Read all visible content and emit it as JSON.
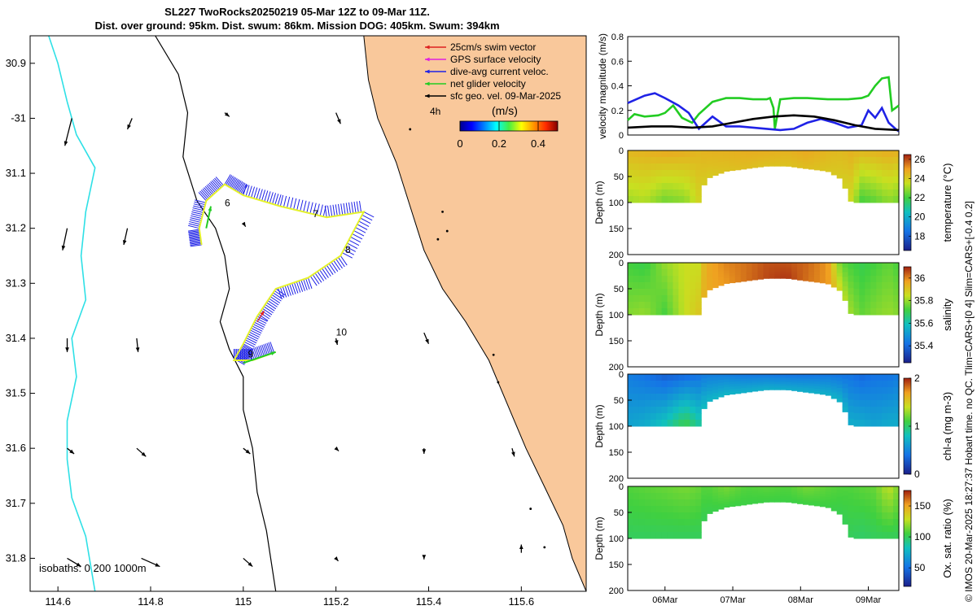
{
  "title_line1": "SL227 TwoRocks20250219 05-Mar 12Z to 09-Mar 11Z.",
  "title_line2": "Dist. over ground: 95km. Dist. swum: 86km. Mission DOG: 405km. Swum: 394km",
  "credit": "© IMOS 20-Mar-2025 18:27:37 Hobart time. no QC. Tlim=CARS+[0 4] Slim=CARS+[-0.4 0.2]",
  "colors": {
    "land": "#f9c89b",
    "coast_isobath": "#000000",
    "deep_isobath": "#2ee0e6",
    "track": "#e5f22a",
    "dive_avg": "#1f22e6",
    "net": "#22cc22",
    "swim": "#dd2020",
    "gps": "#e020e0",
    "geo": "#000000"
  },
  "chart_data": [
    {
      "type": "map",
      "name": "glider track map",
      "x_range": [
        114.54,
        115.74
      ],
      "y_range": [
        -31.86,
        -30.85
      ],
      "xticks": [
        114.6,
        114.8,
        115,
        115.2,
        115.4,
        115.6
      ],
      "xtick_labels": [
        "114.6",
        "114.8",
        "115",
        "115.2",
        "115.4",
        "115.6"
      ],
      "yticks": [
        -30.9,
        -31.0,
        -31.1,
        -31.2,
        -31.3,
        -31.4,
        -31.5,
        -31.6,
        -31.7,
        -31.8
      ],
      "ytick_labels": [
        "30.9",
        "-31",
        "31.1",
        "31.2",
        "31.3",
        "31.4",
        "31.5",
        "31.6",
        "31.7",
        "31.8"
      ],
      "legend": [
        {
          "label": "25cm/s swim vector",
          "color": "#dd2020"
        },
        {
          "label": "GPS surface velocity",
          "color": "#e020e0"
        },
        {
          "label": "dive-avg current veloc.",
          "color": "#1f22e6"
        },
        {
          "label": "net glider velocity",
          "color": "#22cc22"
        },
        {
          "label": "sfc geo. vel. 09-Mar-2025",
          "color": "#000000"
        }
      ],
      "scale_label": "4h",
      "colorbar": {
        "label": "(m/s)",
        "ticks": [
          "0",
          "0.2",
          "0.4"
        ],
        "range": [
          0,
          0.5
        ]
      },
      "isobath_label": "isobaths: 0   200  1000m",
      "day_labels": [
        {
          "text": "6",
          "lon": 114.96,
          "lat": -31.16
        },
        {
          "text": "7",
          "lon": 115.15,
          "lat": -31.18
        },
        {
          "text": "8",
          "lon": 115.22,
          "lat": -31.245
        },
        {
          "text": "9",
          "lon": 115.01,
          "lat": -31.435
        },
        {
          "text": "10",
          "lon": 115.2,
          "lat": -31.395
        }
      ],
      "track": [
        [
          114.91,
          -31.23
        ],
        [
          114.905,
          -31.2
        ],
        [
          114.92,
          -31.15
        ],
        [
          114.96,
          -31.12
        ],
        [
          115.0,
          -31.14
        ],
        [
          115.08,
          -31.16
        ],
        [
          115.18,
          -31.18
        ],
        [
          115.26,
          -31.17
        ],
        [
          115.21,
          -31.25
        ],
        [
          115.14,
          -31.29
        ],
        [
          115.07,
          -31.31
        ],
        [
          115.03,
          -31.36
        ],
        [
          115.0,
          -31.41
        ],
        [
          114.98,
          -31.44
        ],
        [
          115.02,
          -31.44
        ],
        [
          115.07,
          -31.425
        ]
      ],
      "coastline": [
        [
          115.26,
          -30.85
        ],
        [
          115.27,
          -30.93
        ],
        [
          115.29,
          -31.0
        ],
        [
          115.33,
          -31.08
        ],
        [
          115.36,
          -31.16
        ],
        [
          115.39,
          -31.24
        ],
        [
          115.43,
          -31.31
        ],
        [
          115.48,
          -31.37
        ],
        [
          115.53,
          -31.44
        ],
        [
          115.57,
          -31.52
        ],
        [
          115.61,
          -31.6
        ],
        [
          115.65,
          -31.67
        ],
        [
          115.69,
          -31.74
        ],
        [
          115.71,
          -31.8
        ],
        [
          115.74,
          -31.86
        ]
      ],
      "isobath_shelf": [
        [
          114.81,
          -30.85
        ],
        [
          114.86,
          -30.92
        ],
        [
          114.88,
          -30.99
        ],
        [
          114.87,
          -31.07
        ],
        [
          114.9,
          -31.15
        ],
        [
          114.94,
          -31.2
        ],
        [
          114.96,
          -31.25
        ],
        [
          114.97,
          -31.31
        ],
        [
          114.95,
          -31.37
        ],
        [
          114.97,
          -31.42
        ],
        [
          115.0,
          -31.47
        ],
        [
          115.0,
          -31.53
        ],
        [
          115.02,
          -31.6
        ],
        [
          115.03,
          -31.68
        ],
        [
          115.05,
          -31.75
        ],
        [
          115.07,
          -31.86
        ]
      ],
      "isobath_deep": [
        [
          114.58,
          -30.85
        ],
        [
          114.6,
          -30.9
        ],
        [
          114.62,
          -30.97
        ],
        [
          114.64,
          -31.03
        ],
        [
          114.68,
          -31.09
        ],
        [
          114.66,
          -31.17
        ],
        [
          114.65,
          -31.25
        ],
        [
          114.66,
          -31.33
        ],
        [
          114.63,
          -31.4
        ],
        [
          114.64,
          -31.47
        ],
        [
          114.62,
          -31.55
        ],
        [
          114.62,
          -31.62
        ],
        [
          114.63,
          -31.69
        ],
        [
          114.66,
          -31.76
        ],
        [
          114.68,
          -31.86
        ]
      ],
      "geo_vectors": [
        [
          114.63,
          -31.0,
          -0.015,
          -0.05
        ],
        [
          114.76,
          -31.0,
          -0.01,
          -0.02
        ],
        [
          114.96,
          -30.99,
          0.01,
          -0.007
        ],
        [
          115.2,
          -30.99,
          0.01,
          -0.02
        ],
        [
          114.62,
          -31.2,
          -0.01,
          -0.04
        ],
        [
          114.75,
          -31.2,
          -0.008,
          -0.03
        ],
        [
          115.0,
          -31.19,
          0.005,
          -0.007
        ],
        [
          114.62,
          -31.4,
          0.0,
          -0.025
        ],
        [
          114.77,
          -31.4,
          0.003,
          -0.025
        ],
        [
          115.2,
          -31.4,
          0.003,
          -0.012
        ],
        [
          115.39,
          -31.39,
          0.01,
          -0.02
        ],
        [
          114.62,
          -31.6,
          0.015,
          -0.01
        ],
        [
          114.77,
          -31.6,
          0.02,
          -0.015
        ],
        [
          115.0,
          -31.6,
          0.015,
          -0.01
        ],
        [
          115.2,
          -31.6,
          0.006,
          -0.005
        ],
        [
          115.39,
          -31.6,
          0.0,
          -0.01
        ],
        [
          115.58,
          -31.6,
          0.005,
          -0.015
        ],
        [
          114.62,
          -31.8,
          0.03,
          -0.015
        ],
        [
          114.78,
          -31.8,
          0.04,
          -0.015
        ],
        [
          115.0,
          -31.8,
          0.02,
          -0.015
        ],
        [
          115.2,
          -31.8,
          0.005,
          -0.005
        ],
        [
          115.39,
          -31.8,
          0.0,
          -0.002
        ],
        [
          115.6,
          -31.79,
          0.0,
          0.015
        ]
      ]
    },
    {
      "type": "line",
      "name": "velocity magnitude",
      "ylabel": "velocity magnitude (m/s)",
      "ylim": [
        0,
        0.8
      ],
      "yticks": [
        "0",
        "0.2",
        "0.4",
        "0.6",
        "0.8"
      ],
      "xlim": [
        5.45,
        9.45
      ],
      "series": [
        {
          "name": "net glider velocity",
          "color": "#22cc22",
          "x": [
            5.45,
            5.55,
            5.7,
            5.9,
            6.0,
            6.12,
            6.25,
            6.4,
            6.5,
            6.7,
            6.9,
            7.1,
            7.3,
            7.5,
            7.55,
            7.6,
            7.62,
            7.7,
            7.9,
            8.1,
            8.4,
            8.7,
            8.9,
            9.0,
            9.1,
            9.2,
            9.3,
            9.35,
            9.45
          ],
          "y": [
            0.12,
            0.17,
            0.15,
            0.16,
            0.18,
            0.24,
            0.14,
            0.1,
            0.17,
            0.27,
            0.3,
            0.3,
            0.29,
            0.29,
            0.3,
            0.22,
            0.05,
            0.29,
            0.3,
            0.3,
            0.29,
            0.29,
            0.3,
            0.32,
            0.4,
            0.46,
            0.47,
            0.2,
            0.24
          ]
        },
        {
          "name": "dive-avg current",
          "color": "#1f22e6",
          "x": [
            5.45,
            5.7,
            5.85,
            6.0,
            6.2,
            6.35,
            6.5,
            6.7,
            6.9,
            7.1,
            7.3,
            7.5,
            7.7,
            7.9,
            8.1,
            8.3,
            8.5,
            8.7,
            8.9,
            9.0,
            9.1,
            9.2,
            9.3,
            9.4,
            9.45
          ],
          "y": [
            0.26,
            0.32,
            0.34,
            0.3,
            0.24,
            0.18,
            0.05,
            0.15,
            0.07,
            0.07,
            0.06,
            0.05,
            0.04,
            0.05,
            0.1,
            0.13,
            0.1,
            0.06,
            0.08,
            0.2,
            0.14,
            0.22,
            0.1,
            0.05,
            0.03
          ]
        },
        {
          "name": "sfc geo. vel.",
          "color": "#000000",
          "x": [
            5.45,
            5.8,
            6.1,
            6.4,
            6.7,
            7.0,
            7.3,
            7.6,
            7.9,
            8.2,
            8.5,
            8.8,
            9.1,
            9.45
          ],
          "y": [
            0.06,
            0.07,
            0.07,
            0.06,
            0.07,
            0.1,
            0.13,
            0.15,
            0.16,
            0.15,
            0.12,
            0.08,
            0.05,
            0.04
          ]
        }
      ]
    },
    {
      "type": "heatmap",
      "name": "temperature section",
      "ylabel": "Depth (m)",
      "clabel": "temperature (°C)",
      "ylim": [
        0,
        200
      ],
      "yticks": [
        "0",
        "50",
        "100",
        "150",
        "200"
      ],
      "crange": [
        16.5,
        26.5
      ],
      "cticks": [
        "18",
        "20",
        "22",
        "24",
        "26"
      ],
      "x": [
        5.45,
        5.7,
        6.0,
        6.3,
        6.5,
        6.6,
        6.9,
        7.2,
        7.5,
        7.8,
        8.1,
        8.4,
        8.6,
        8.75,
        8.9,
        9.1,
        9.3,
        9.45
      ],
      "max_depth": [
        100,
        100,
        100,
        100,
        100,
        55,
        40,
        35,
        30,
        30,
        35,
        40,
        55,
        100,
        100,
        100,
        100,
        100
      ],
      "surface": [
        24.5,
        24.6,
        24.8,
        24.7,
        24.5,
        24.6,
        24.6,
        24.7,
        24.7,
        24.6,
        24.8,
        24.5,
        24.4,
        24.6,
        24.5,
        24.6,
        24.7,
        24.6
      ],
      "deep": [
        23.0,
        23.2,
        22.5,
        22.8,
        23.8,
        24.0,
        24.2,
        24.3,
        24.2,
        24.2,
        24.3,
        24.1,
        24.0,
        23.6,
        22.0,
        22.3,
        22.8,
        22.5
      ],
      "xtick_labels": []
    },
    {
      "type": "heatmap",
      "name": "salinity section",
      "ylabel": "Depth (m)",
      "clabel": "salinity",
      "ylim": [
        0,
        200
      ],
      "yticks": [
        "0",
        "50",
        "100",
        "150",
        "200"
      ],
      "crange": [
        35.25,
        36.1
      ],
      "cticks": [
        "35.4",
        "35.6",
        "35.8",
        "36"
      ],
      "x": [
        5.45,
        5.7,
        6.0,
        6.3,
        6.5,
        6.6,
        6.9,
        7.2,
        7.5,
        7.8,
        8.1,
        8.4,
        8.6,
        8.75,
        8.9,
        9.1,
        9.3,
        9.45
      ],
      "max_depth": [
        100,
        100,
        100,
        100,
        100,
        55,
        40,
        35,
        30,
        30,
        35,
        40,
        55,
        100,
        100,
        100,
        100,
        100
      ],
      "surface": [
        35.72,
        35.7,
        35.8,
        35.85,
        35.85,
        35.95,
        36.0,
        36.02,
        36.05,
        36.05,
        36.03,
        35.98,
        35.75,
        35.72,
        35.7,
        35.72,
        35.75,
        35.72
      ],
      "deep": [
        35.78,
        35.8,
        35.72,
        35.85,
        35.9,
        35.95,
        35.98,
        36.02,
        36.06,
        36.08,
        36.02,
        35.98,
        35.85,
        35.8,
        35.75,
        35.78,
        35.8,
        35.78
      ],
      "xtick_labels": []
    },
    {
      "type": "heatmap",
      "name": "chlorophyll section",
      "ylabel": "Depth (m)",
      "clabel": "chl-a (mg m-3)",
      "ylim": [
        0,
        200
      ],
      "yticks": [
        "0",
        "50",
        "100",
        "150",
        "200"
      ],
      "crange": [
        0,
        2
      ],
      "cticks": [
        "0",
        "1",
        "2"
      ],
      "x": [
        5.45,
        5.7,
        6.0,
        6.3,
        6.5,
        6.6,
        6.9,
        7.2,
        7.5,
        7.8,
        8.1,
        8.4,
        8.6,
        8.75,
        8.9,
        9.1,
        9.3,
        9.45
      ],
      "max_depth": [
        100,
        100,
        100,
        100,
        100,
        55,
        40,
        35,
        30,
        30,
        35,
        40,
        55,
        100,
        100,
        100,
        100,
        100
      ],
      "surface": [
        0.45,
        0.4,
        0.3,
        0.35,
        0.4,
        0.45,
        0.45,
        0.42,
        0.42,
        0.4,
        0.4,
        0.42,
        0.4,
        0.4,
        0.35,
        0.4,
        0.4,
        0.45
      ],
      "deep": [
        0.65,
        0.7,
        0.85,
        1.1,
        0.9,
        0.75,
        0.75,
        0.72,
        0.72,
        0.7,
        0.72,
        0.72,
        0.75,
        0.7,
        0.7,
        0.65,
        0.7,
        0.7
      ],
      "xtick_labels": []
    },
    {
      "type": "heatmap",
      "name": "oxygen saturation section",
      "ylabel": "Depth (m)",
      "clabel": "Ox. sat. ratio (%)",
      "ylim": [
        0,
        200
      ],
      "yticks": [
        "0",
        "50",
        "100",
        "150",
        "200"
      ],
      "crange": [
        20,
        175
      ],
      "cticks": [
        "50",
        "100",
        "150"
      ],
      "x": [
        5.45,
        5.7,
        6.0,
        6.3,
        6.5,
        6.6,
        6.9,
        7.2,
        7.5,
        7.8,
        8.1,
        8.4,
        8.6,
        8.75,
        8.9,
        9.1,
        9.3,
        9.45
      ],
      "max_depth": [
        100,
        100,
        100,
        100,
        100,
        55,
        40,
        35,
        30,
        30,
        35,
        40,
        55,
        100,
        100,
        100,
        100,
        100
      ],
      "surface": [
        108,
        110,
        112,
        115,
        112,
        108,
        115,
        108,
        110,
        108,
        115,
        110,
        108,
        108,
        110,
        112,
        128,
        115
      ],
      "deep": [
        100,
        100,
        100,
        100,
        100,
        102,
        104,
        104,
        104,
        104,
        104,
        104,
        102,
        100,
        98,
        100,
        100,
        100
      ],
      "xticks": [
        6,
        7,
        8,
        9
      ],
      "xtick_labels": [
        "06Mar",
        "07Mar",
        "08Mar",
        "09Mar"
      ]
    }
  ]
}
